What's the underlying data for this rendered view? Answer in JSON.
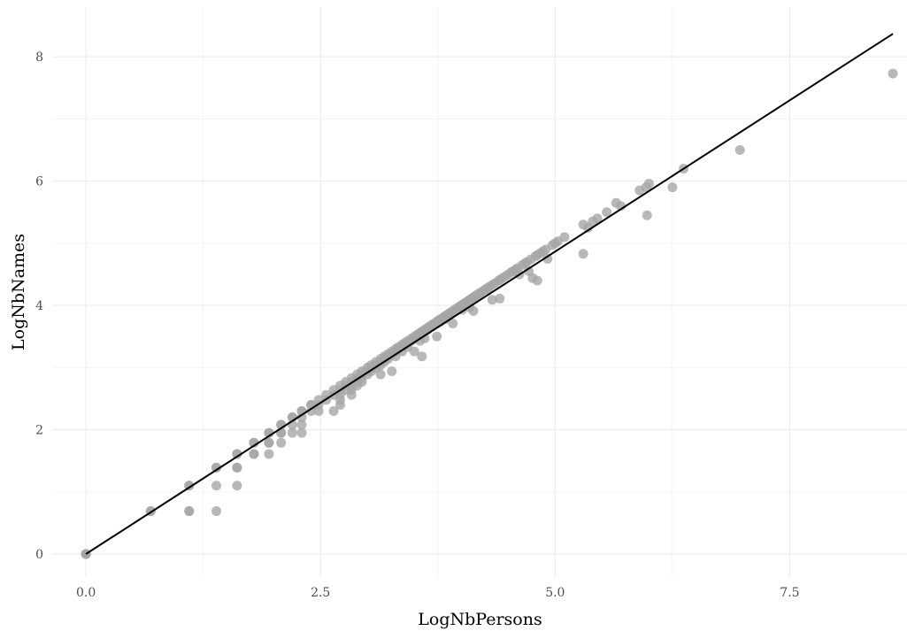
{
  "chart_data": {
    "type": "scatter",
    "title": "",
    "xlabel": "LogNbPersons",
    "ylabel": "LogNbNames",
    "xlim": [
      -0.35,
      8.75
    ],
    "ylim": [
      -0.37,
      8.8
    ],
    "x_ticks": [
      0.0,
      2.5,
      5.0,
      7.5
    ],
    "x_tick_labels": [
      "0.0",
      "2.5",
      "5.0",
      "7.5"
    ],
    "y_ticks": [
      0,
      2,
      4,
      6,
      8
    ],
    "y_tick_labels": [
      "0",
      "2",
      "4",
      "6",
      "8"
    ],
    "grid": true,
    "legend": "none",
    "point_color": "#a6a6a6",
    "line_color": "#000000",
    "fit_line": {
      "x": [
        0.0,
        8.6
      ],
      "y": [
        0.0,
        8.37
      ]
    },
    "points": [
      [
        0,
        0
      ],
      [
        0,
        0
      ],
      [
        0,
        0
      ],
      [
        0,
        0
      ],
      [
        0.69,
        0.69
      ],
      [
        0.69,
        0.69
      ],
      [
        1.1,
        1.1
      ],
      [
        1.1,
        1.1
      ],
      [
        1.1,
        0.69
      ],
      [
        1.1,
        0.69
      ],
      [
        1.39,
        1.39
      ],
      [
        1.39,
        1.39
      ],
      [
        1.39,
        1.1
      ],
      [
        1.39,
        0.69
      ],
      [
        1.61,
        1.61
      ],
      [
        1.61,
        1.61
      ],
      [
        1.61,
        1.39
      ],
      [
        1.61,
        1.39
      ],
      [
        1.61,
        1.1
      ],
      [
        1.79,
        1.79
      ],
      [
        1.79,
        1.79
      ],
      [
        1.79,
        1.61
      ],
      [
        1.79,
        1.61
      ],
      [
        1.95,
        1.95
      ],
      [
        1.95,
        1.95
      ],
      [
        1.95,
        1.79
      ],
      [
        1.95,
        1.79
      ],
      [
        1.95,
        1.61
      ],
      [
        2.08,
        2.08
      ],
      [
        2.08,
        2.08
      ],
      [
        2.08,
        1.95
      ],
      [
        2.08,
        1.95
      ],
      [
        2.08,
        1.79
      ],
      [
        2.2,
        2.2
      ],
      [
        2.2,
        2.2
      ],
      [
        2.2,
        2.08
      ],
      [
        2.2,
        1.95
      ],
      [
        2.3,
        2.3
      ],
      [
        2.3,
        2.3
      ],
      [
        2.3,
        2.2
      ],
      [
        2.3,
        2.08
      ],
      [
        2.3,
        1.95
      ],
      [
        2.4,
        2.4
      ],
      [
        2.4,
        2.4
      ],
      [
        2.4,
        2.3
      ],
      [
        2.48,
        2.48
      ],
      [
        2.48,
        2.4
      ],
      [
        2.48,
        2.3
      ],
      [
        2.56,
        2.56
      ],
      [
        2.56,
        2.48
      ],
      [
        2.64,
        2.64
      ],
      [
        2.64,
        2.56
      ],
      [
        2.64,
        2.3
      ],
      [
        2.71,
        2.71
      ],
      [
        2.71,
        2.64
      ],
      [
        2.71,
        2.56
      ],
      [
        2.71,
        2.48
      ],
      [
        2.71,
        2.4
      ],
      [
        2.77,
        2.77
      ],
      [
        2.77,
        2.71
      ],
      [
        2.77,
        2.64
      ],
      [
        2.83,
        2.83
      ],
      [
        2.83,
        2.77
      ],
      [
        2.83,
        2.71
      ],
      [
        2.83,
        2.64
      ],
      [
        2.83,
        2.56
      ],
      [
        2.89,
        2.89
      ],
      [
        2.89,
        2.83
      ],
      [
        2.89,
        2.77
      ],
      [
        2.89,
        2.71
      ],
      [
        2.94,
        2.94
      ],
      [
        2.94,
        2.89
      ],
      [
        2.94,
        2.83
      ],
      [
        2.94,
        2.77
      ],
      [
        3.0,
        3.0
      ],
      [
        3.0,
        2.94
      ],
      [
        3.0,
        2.89
      ],
      [
        3.04,
        3.04
      ],
      [
        3.04,
        3.0
      ],
      [
        3.04,
        2.94
      ],
      [
        3.09,
        3.09
      ],
      [
        3.09,
        3.04
      ],
      [
        3.09,
        3.0
      ],
      [
        3.14,
        3.14
      ],
      [
        3.14,
        3.09
      ],
      [
        3.14,
        3.04
      ],
      [
        3.14,
        2.89
      ],
      [
        3.18,
        3.18
      ],
      [
        3.18,
        3.14
      ],
      [
        3.18,
        3.09
      ],
      [
        3.22,
        3.22
      ],
      [
        3.22,
        3.18
      ],
      [
        3.22,
        3.14
      ],
      [
        3.26,
        3.26
      ],
      [
        3.26,
        3.22
      ],
      [
        3.26,
        2.94
      ],
      [
        3.3,
        3.3
      ],
      [
        3.3,
        3.26
      ],
      [
        3.3,
        3.18
      ],
      [
        3.33,
        3.33
      ],
      [
        3.33,
        3.3
      ],
      [
        3.37,
        3.37
      ],
      [
        3.37,
        3.33
      ],
      [
        3.37,
        3.26
      ],
      [
        3.4,
        3.4
      ],
      [
        3.4,
        3.37
      ],
      [
        3.43,
        3.43
      ],
      [
        3.43,
        3.4
      ],
      [
        3.43,
        3.33
      ],
      [
        3.47,
        3.47
      ],
      [
        3.47,
        3.43
      ],
      [
        3.5,
        3.5
      ],
      [
        3.5,
        3.47
      ],
      [
        3.5,
        3.26
      ],
      [
        3.53,
        3.53
      ],
      [
        3.53,
        3.5
      ],
      [
        3.56,
        3.56
      ],
      [
        3.56,
        3.53
      ],
      [
        3.56,
        3.43
      ],
      [
        3.58,
        3.58
      ],
      [
        3.58,
        3.56
      ],
      [
        3.58,
        3.18
      ],
      [
        3.61,
        3.61
      ],
      [
        3.61,
        3.58
      ],
      [
        3.61,
        3.47
      ],
      [
        3.64,
        3.64
      ],
      [
        3.64,
        3.61
      ],
      [
        3.66,
        3.66
      ],
      [
        3.66,
        3.64
      ],
      [
        3.69,
        3.69
      ],
      [
        3.69,
        3.66
      ],
      [
        3.71,
        3.71
      ],
      [
        3.71,
        3.69
      ],
      [
        3.74,
        3.74
      ],
      [
        3.74,
        3.71
      ],
      [
        3.74,
        3.5
      ],
      [
        3.76,
        3.76
      ],
      [
        3.78,
        3.78
      ],
      [
        3.78,
        3.74
      ],
      [
        3.81,
        3.81
      ],
      [
        3.83,
        3.83
      ],
      [
        3.83,
        3.78
      ],
      [
        3.85,
        3.85
      ],
      [
        3.87,
        3.87
      ],
      [
        3.87,
        3.83
      ],
      [
        3.89,
        3.89
      ],
      [
        3.91,
        3.91
      ],
      [
        3.91,
        3.71
      ],
      [
        3.93,
        3.93
      ],
      [
        3.95,
        3.95
      ],
      [
        3.97,
        3.97
      ],
      [
        3.99,
        3.99
      ],
      [
        4.01,
        4.01
      ],
      [
        4.01,
        3.93
      ],
      [
        4.03,
        4.03
      ],
      [
        4.04,
        4.04
      ],
      [
        4.06,
        4.06
      ],
      [
        4.08,
        4.08
      ],
      [
        4.09,
        4.09
      ],
      [
        4.09,
        3.97
      ],
      [
        4.11,
        4.11
      ],
      [
        4.13,
        4.13
      ],
      [
        4.13,
        3.91
      ],
      [
        4.14,
        4.14
      ],
      [
        4.16,
        4.16
      ],
      [
        4.17,
        4.17
      ],
      [
        4.19,
        4.19
      ],
      [
        4.2,
        4.2
      ],
      [
        4.22,
        4.22
      ],
      [
        4.25,
        4.25
      ],
      [
        4.26,
        4.26
      ],
      [
        4.28,
        4.28
      ],
      [
        4.3,
        4.3
      ],
      [
        4.33,
        4.33
      ],
      [
        4.33,
        4.09
      ],
      [
        4.36,
        4.36
      ],
      [
        4.4,
        4.4
      ],
      [
        4.41,
        4.41
      ],
      [
        4.41,
        4.11
      ],
      [
        4.44,
        4.44
      ],
      [
        4.47,
        4.47
      ],
      [
        4.5,
        4.5
      ],
      [
        4.53,
        4.53
      ],
      [
        4.55,
        4.55
      ],
      [
        4.58,
        4.58
      ],
      [
        4.6,
        4.6
      ],
      [
        4.62,
        4.5
      ],
      [
        4.65,
        4.65
      ],
      [
        4.68,
        4.68
      ],
      [
        4.7,
        4.7
      ],
      [
        4.72,
        4.55
      ],
      [
        4.74,
        4.74
      ],
      [
        4.76,
        4.44
      ],
      [
        4.79,
        4.79
      ],
      [
        4.81,
        4.81
      ],
      [
        4.81,
        4.4
      ],
      [
        4.84,
        4.84
      ],
      [
        4.87,
        4.87
      ],
      [
        4.9,
        4.9
      ],
      [
        4.92,
        4.75
      ],
      [
        4.97,
        4.97
      ],
      [
        5.0,
        5.0
      ],
      [
        5.03,
        5.03
      ],
      [
        5.1,
        5.1
      ],
      [
        5.3,
        5.3
      ],
      [
        5.3,
        4.83
      ],
      [
        5.35,
        5.25
      ],
      [
        5.4,
        5.35
      ],
      [
        5.45,
        5.4
      ],
      [
        5.55,
        5.5
      ],
      [
        5.65,
        5.65
      ],
      [
        5.7,
        5.6
      ],
      [
        5.9,
        5.85
      ],
      [
        5.97,
        5.9
      ],
      [
        6.0,
        5.96
      ],
      [
        5.98,
        5.45
      ],
      [
        6.25,
        5.9
      ],
      [
        6.37,
        6.2
      ],
      [
        6.97,
        6.5
      ],
      [
        8.6,
        7.73
      ]
    ]
  }
}
